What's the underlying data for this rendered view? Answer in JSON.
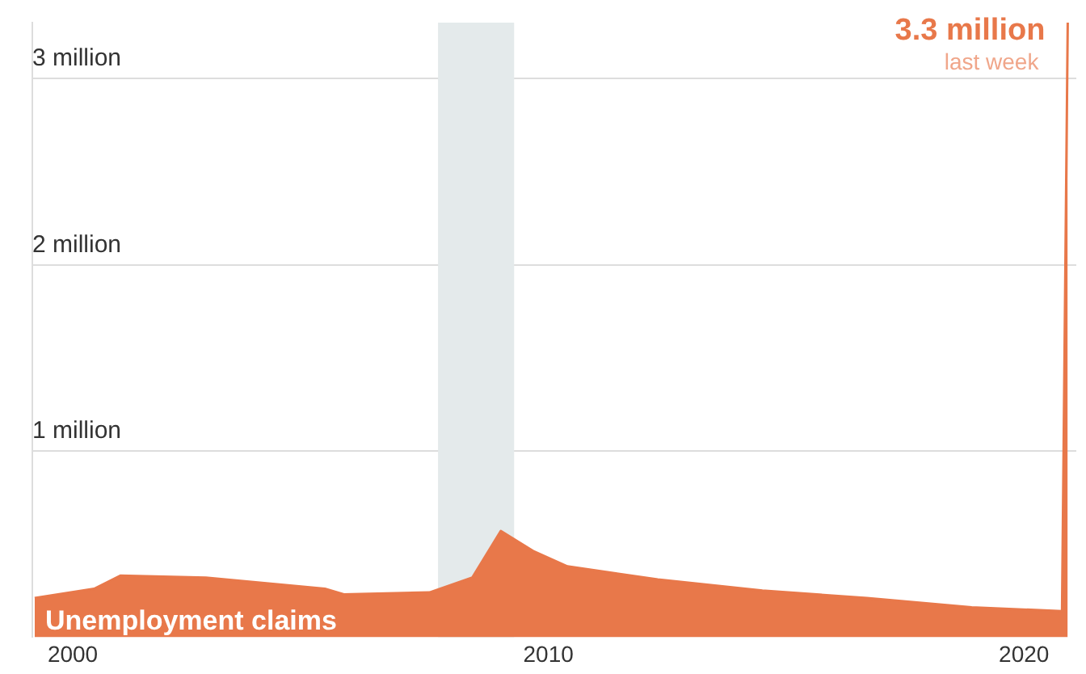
{
  "chart_data": {
    "type": "area",
    "xlim": [
      1999.15,
      2021.1
    ],
    "xticks": [
      2000,
      2010,
      2020
    ],
    "ylim": [
      0,
      3.3
    ],
    "yticks": [
      {
        "value": 1,
        "label": "1 million"
      },
      {
        "value": 2,
        "label": "2 million"
      },
      {
        "value": 3,
        "label": "3 million"
      }
    ],
    "grid": "y",
    "legend": false,
    "bands": [
      {
        "axis": "x",
        "from": 2007.68,
        "to": 2009.28,
        "color": "#e4eaeb"
      }
    ],
    "annotations": [
      {
        "text": "3.3 million",
        "x": 2020.92,
        "y": 3.3
      },
      "last week"
    ],
    "series": [
      {
        "name": "Unemployment claims",
        "color": "#e8784a",
        "x": [
          1999.2,
          2000.45,
          2001.0,
          2002.8,
          2005.3,
          2005.7,
          2007.5,
          2008.4,
          2009.0,
          2009.7,
          2010.4,
          2012.3,
          2014.5,
          2016.7,
          2018.9,
          2020.8,
          2020.92
        ],
        "values": [
          0.21,
          0.26,
          0.33,
          0.32,
          0.26,
          0.23,
          0.24,
          0.32,
          0.57,
          0.46,
          0.38,
          0.31,
          0.25,
          0.21,
          0.16,
          0.14,
          3.3
        ]
      }
    ]
  }
}
